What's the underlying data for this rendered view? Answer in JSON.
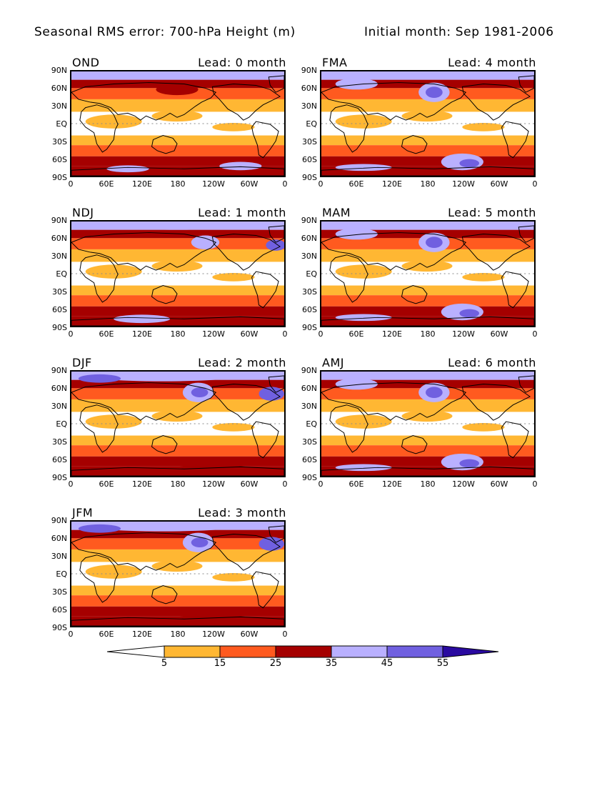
{
  "header": {
    "title_left": "Seasonal RMS error: 700-hPa Height (m)",
    "title_right": "Initial month: Sep 1981-2006"
  },
  "lat_labels": [
    "90N",
    "60N",
    "30N",
    "EQ",
    "30S",
    "60S",
    "90S"
  ],
  "lon_labels": [
    "0",
    "60E",
    "120E",
    "180",
    "120W",
    "60W",
    "0"
  ],
  "panels": [
    {
      "season": "OND",
      "lead": "Lead: 0 month",
      "regime": 0
    },
    {
      "season": "FMA",
      "lead": "Lead: 4 month",
      "regime": 3
    },
    {
      "season": "NDJ",
      "lead": "Lead: 1 month",
      "regime": 1
    },
    {
      "season": "MAM",
      "lead": "Lead: 5 month",
      "regime": 3
    },
    {
      "season": "DJF",
      "lead": "Lead: 2 month",
      "regime": 2
    },
    {
      "season": "AMJ",
      "lead": "Lead: 6 month",
      "regime": 3
    },
    {
      "season": "JFM",
      "lead": "Lead: 3 month",
      "regime": 2
    }
  ],
  "colorbar": {
    "tick_labels": [
      "5",
      "15",
      "25",
      "35",
      "45",
      "55"
    ],
    "colors": [
      "#ffffff",
      "#ffb733",
      "#ff5a1f",
      "#a50000",
      "#b9b0ff",
      "#7060e0",
      "#2a0aa0"
    ]
  }
}
